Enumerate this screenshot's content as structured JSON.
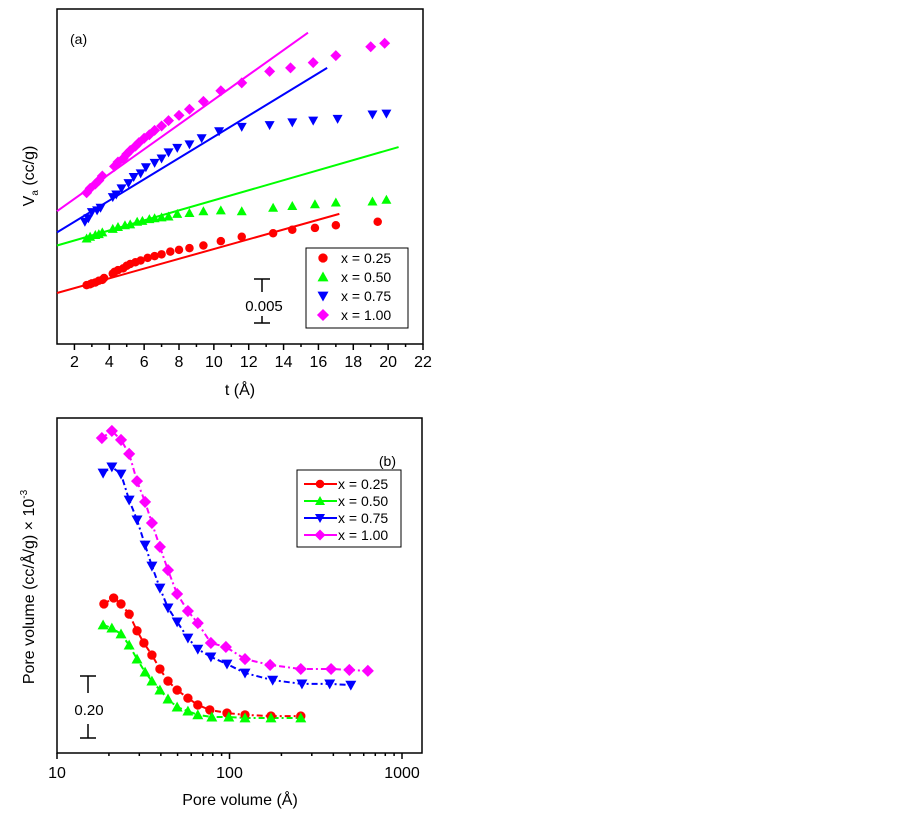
{
  "chart_data": [
    {
      "id": "a",
      "type": "scatter",
      "panel_label": "(a)",
      "title": "",
      "xlabel": "t (Å)",
      "ylabel_main": "V",
      "ylabel_sub": "a",
      "ylabel_rest": " (cc/g)",
      "xlim": [
        1,
        22
      ],
      "ylim": [
        0,
        0.0381
      ],
      "xticks": [
        2,
        4,
        6,
        8,
        10,
        12,
        14,
        16,
        18,
        20,
        22
      ],
      "xtick_labels": [
        "2",
        "4",
        "6",
        "8",
        "10",
        "12",
        "14",
        "16",
        "18",
        "20",
        "22"
      ],
      "y_ticks_shown": false,
      "scale_bar": {
        "value": 0.005,
        "label": "0.005"
      },
      "legend_position": "bottom-right",
      "grid": false,
      "series": [
        {
          "name": "x = 0.25",
          "color": "#ff0000",
          "marker": "circle",
          "x": [
            2.7,
            2.9,
            3.0,
            3.2,
            3.4,
            3.6,
            3.7,
            4.2,
            4.3,
            4.5,
            4.8,
            5.0,
            5.2,
            5.5,
            5.8,
            6.2,
            6.6,
            7.0,
            7.5,
            8.0,
            8.6,
            9.4,
            10.4,
            11.6,
            13.4,
            14.5,
            15.8,
            17.0,
            19.4
          ],
          "y": [
            0.0067,
            0.0068,
            0.0069,
            0.007,
            0.0072,
            0.0073,
            0.0075,
            0.008,
            0.0082,
            0.0084,
            0.0086,
            0.0089,
            0.0091,
            0.0093,
            0.0095,
            0.0098,
            0.01,
            0.0102,
            0.0105,
            0.0107,
            0.0109,
            0.0112,
            0.0117,
            0.0122,
            0.0126,
            0.013,
            0.0132,
            0.0135,
            0.0139
          ],
          "fit": {
            "x": [
              1.0,
              17.2
            ],
            "y": [
              0.0058,
              0.0148
            ]
          }
        },
        {
          "name": "x = 0.50",
          "color": "#00ff00",
          "marker": "triangle-up",
          "x": [
            2.7,
            2.9,
            3.2,
            3.4,
            3.6,
            4.2,
            4.5,
            4.9,
            5.2,
            5.6,
            5.9,
            6.3,
            6.6,
            7.0,
            7.4,
            7.9,
            8.6,
            9.4,
            10.4,
            11.6,
            13.4,
            14.5,
            15.8,
            17.0,
            19.1,
            19.9
          ],
          "y": [
            0.012,
            0.0122,
            0.0124,
            0.0125,
            0.0127,
            0.0131,
            0.0133,
            0.0135,
            0.0136,
            0.0139,
            0.014,
            0.0142,
            0.0143,
            0.0144,
            0.0145,
            0.0148,
            0.0149,
            0.0151,
            0.0152,
            0.0151,
            0.0155,
            0.0157,
            0.0159,
            0.0161,
            0.0162,
            0.0164
          ],
          "fit": {
            "x": [
              1.0,
              20.6
            ],
            "y": [
              0.0112,
              0.0224
            ]
          }
        },
        {
          "name": "x = 0.75",
          "color": "#0000ff",
          "marker": "triangle-down",
          "x": [
            2.6,
            2.8,
            3.0,
            3.3,
            3.5,
            4.2,
            4.4,
            4.7,
            5.1,
            5.4,
            5.8,
            6.1,
            6.6,
            7.0,
            7.4,
            7.9,
            8.6,
            9.3,
            10.3,
            11.6,
            13.2,
            14.5,
            15.7,
            17.1,
            19.1,
            19.9
          ],
          "y": [
            0.0139,
            0.0143,
            0.015,
            0.0152,
            0.0155,
            0.0167,
            0.017,
            0.0177,
            0.0183,
            0.019,
            0.0194,
            0.0201,
            0.0206,
            0.0211,
            0.0218,
            0.0223,
            0.0227,
            0.0234,
            0.0242,
            0.0247,
            0.0249,
            0.0252,
            0.0254,
            0.0256,
            0.0261,
            0.0262
          ],
          "fit": {
            "x": [
              1.0,
              16.5
            ],
            "y": [
              0.0127,
              0.0314
            ]
          }
        },
        {
          "name": "x = 1.00",
          "color": "#ff00ff",
          "marker": "diamond",
          "x": [
            2.7,
            2.9,
            3.2,
            3.4,
            3.6,
            4.3,
            4.5,
            4.8,
            5.0,
            5.2,
            5.5,
            5.7,
            6.0,
            6.3,
            6.6,
            7.0,
            7.4,
            8.0,
            8.6,
            9.4,
            10.4,
            11.6,
            13.2,
            14.4,
            15.7,
            17.0,
            19.0,
            19.8
          ],
          "y": [
            0.0172,
            0.0177,
            0.0182,
            0.0186,
            0.0191,
            0.0202,
            0.0207,
            0.0211,
            0.0216,
            0.022,
            0.0225,
            0.0229,
            0.0234,
            0.0238,
            0.0243,
            0.0248,
            0.0254,
            0.026,
            0.0267,
            0.0276,
            0.0288,
            0.0297,
            0.031,
            0.0314,
            0.032,
            0.0328,
            0.0338,
            0.0342
          ],
          "fit": {
            "x": [
              1.0,
              15.4
            ],
            "y": [
              0.0151,
              0.0354
            ]
          }
        }
      ]
    },
    {
      "id": "b",
      "type": "line",
      "panel_label": "(b)",
      "title": "",
      "xlabel": "Pore volume (Å)",
      "ylabel": "Pore volume (cc/Å/g) × 10",
      "ylabel_sup": "-3",
      "xscale": "log",
      "xlim": [
        10,
        1300
      ],
      "ylim": [
        0,
        1.08
      ],
      "xticks": [
        10,
        100,
        1000
      ],
      "xtick_labels": [
        "10",
        "100",
        "1000"
      ],
      "y_ticks_shown": false,
      "scale_bar": {
        "value": 0.2,
        "label": "0.20"
      },
      "legend_position": "top-right",
      "grid": false,
      "series": [
        {
          "name": "x = 0.25",
          "color": "#ff0000",
          "marker": "circle",
          "x": [
            18.7,
            21.3,
            23.5,
            26.2,
            29.1,
            31.9,
            35.5,
            39.5,
            44.0,
            49.7,
            57.4,
            65.5,
            76.9,
            96.7,
            123,
            174,
            259
          ],
          "y": [
            0.481,
            0.5,
            0.481,
            0.448,
            0.394,
            0.355,
            0.316,
            0.271,
            0.232,
            0.203,
            0.177,
            0.155,
            0.139,
            0.129,
            0.123,
            0.119,
            0.119
          ]
        },
        {
          "name": "x = 0.50",
          "color": "#00ff00",
          "marker": "triangle-up",
          "x": [
            18.5,
            20.8,
            23.5,
            26.2,
            29.1,
            32.4,
            35.5,
            39.5,
            44.0,
            49.7,
            57.4,
            65.5,
            79.0,
            99.1,
            123,
            174,
            259
          ],
          "y": [
            0.413,
            0.403,
            0.384,
            0.348,
            0.303,
            0.261,
            0.232,
            0.203,
            0.174,
            0.148,
            0.135,
            0.123,
            0.116,
            0.116,
            0.113,
            0.113,
            0.113
          ]
        },
        {
          "name": "x = 0.75",
          "color": "#0000ff",
          "marker": "triangle-down",
          "x": [
            18.5,
            20.8,
            23.5,
            26.2,
            29.1,
            32.4,
            35.5,
            39.5,
            44.0,
            49.7,
            57.4,
            65.5,
            78.0,
            96.7,
            123,
            178,
            263,
            381,
            505
          ],
          "y": [
            0.903,
            0.923,
            0.9,
            0.816,
            0.752,
            0.671,
            0.603,
            0.532,
            0.468,
            0.423,
            0.371,
            0.335,
            0.31,
            0.287,
            0.258,
            0.235,
            0.223,
            0.223,
            0.219
          ]
        },
        {
          "name": "x = 1.00",
          "color": "#ff00ff",
          "marker": "diamond",
          "x": [
            18.2,
            20.8,
            23.5,
            26.2,
            29.1,
            32.4,
            35.5,
            39.5,
            44.0,
            49.7,
            57.4,
            65.5,
            78.0,
            95.3,
            123,
            172,
            259,
            388,
            495,
            634
          ],
          "y": [
            1.016,
            1.039,
            1.01,
            0.965,
            0.877,
            0.81,
            0.742,
            0.665,
            0.59,
            0.513,
            0.458,
            0.419,
            0.355,
            0.342,
            0.303,
            0.284,
            0.271,
            0.271,
            0.268,
            0.265
          ]
        }
      ]
    }
  ]
}
